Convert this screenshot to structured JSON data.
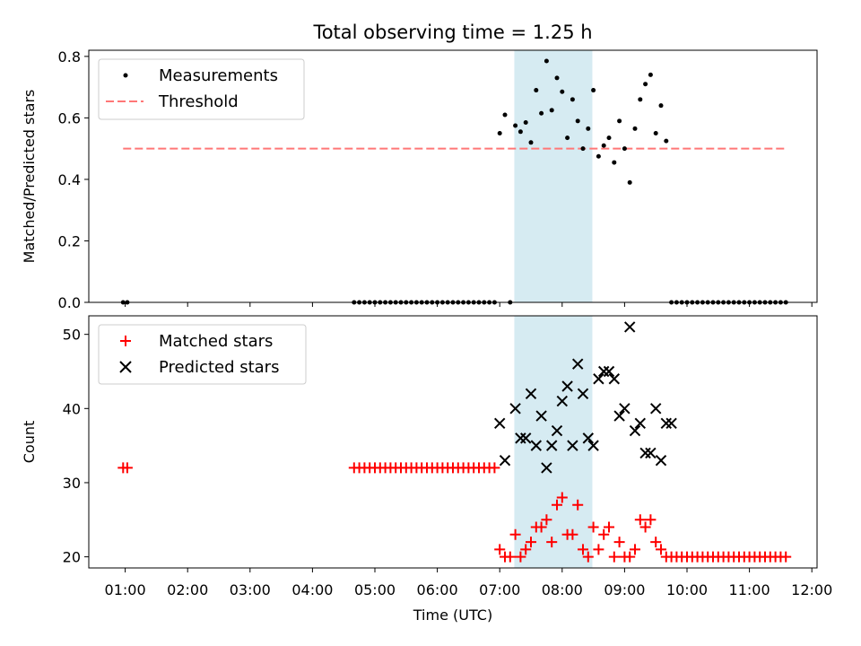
{
  "figure": {
    "title": "Total observing time = 1.25 h",
    "xlabel": "Time (UTC)",
    "xticks": [
      "01:00",
      "02:00",
      "03:00",
      "04:00",
      "05:00",
      "06:00",
      "07:00",
      "08:00",
      "09:00",
      "10:00",
      "11:00",
      "12:00"
    ]
  },
  "chart_data": [
    {
      "type": "scatter",
      "ylabel": "Matched/Predicted stars",
      "ylim": [
        0,
        0.82
      ],
      "yticks": [
        "0.0",
        "0.2",
        "0.4",
        "0.6",
        "0.8"
      ],
      "xlim": [
        "00:25",
        "12:05"
      ],
      "grid": false,
      "legend_position": "top-left",
      "highlight_span": [
        "07:14",
        "08:29"
      ],
      "threshold": {
        "name": "Threshold",
        "value": 0.5,
        "x_range": [
          "00:58",
          "11:35"
        ],
        "color": "#ff7777"
      },
      "series": [
        {
          "name": "Measurements",
          "color": "#000000",
          "x": [
            "00:58",
            "01:02",
            "04:40",
            "04:45",
            "04:50",
            "04:55",
            "05:00",
            "05:05",
            "05:10",
            "05:15",
            "05:20",
            "05:25",
            "05:30",
            "05:35",
            "05:40",
            "05:45",
            "05:50",
            "05:55",
            "06:00",
            "06:05",
            "06:10",
            "06:15",
            "06:20",
            "06:25",
            "06:30",
            "06:35",
            "06:40",
            "06:45",
            "06:50",
            "06:55",
            "07:00",
            "07:05",
            "07:10",
            "07:15",
            "07:20",
            "07:25",
            "07:30",
            "07:35",
            "07:40",
            "07:45",
            "07:50",
            "07:55",
            "08:00",
            "08:05",
            "08:10",
            "08:15",
            "08:20",
            "08:25",
            "08:30",
            "08:35",
            "08:40",
            "08:45",
            "08:50",
            "08:55",
            "09:00",
            "09:05",
            "09:10",
            "09:15",
            "09:20",
            "09:25",
            "09:30",
            "09:35",
            "09:40",
            "09:45",
            "09:50",
            "09:55",
            "10:00",
            "10:05",
            "10:10",
            "10:15",
            "10:20",
            "10:25",
            "10:30",
            "10:35",
            "10:40",
            "10:45",
            "10:50",
            "10:55",
            "11:00",
            "11:05",
            "11:10",
            "11:15",
            "11:20",
            "11:25",
            "11:30",
            "11:35"
          ],
          "y": [
            0,
            0,
            0,
            0,
            0,
            0,
            0,
            0,
            0,
            0,
            0,
            0,
            0,
            0,
            0,
            0,
            0,
            0,
            0,
            0,
            0,
            0,
            0,
            0,
            0,
            0,
            0,
            0,
            0,
            0,
            0.55,
            0.61,
            0.0,
            0.575,
            0.555,
            0.585,
            0.52,
            0.69,
            0.615,
            0.785,
            0.625,
            0.73,
            0.685,
            0.535,
            0.66,
            0.59,
            0.5,
            0.565,
            0.69,
            0.475,
            0.51,
            0.535,
            0.455,
            0.59,
            0.5,
            0.39,
            0.565,
            0.66,
            0.71,
            0.74,
            0.55,
            0.64,
            0.525,
            0,
            0,
            0,
            0,
            0,
            0,
            0,
            0,
            0,
            0,
            0,
            0,
            0,
            0,
            0,
            0,
            0,
            0,
            0,
            0,
            0,
            0,
            0
          ]
        }
      ]
    },
    {
      "type": "scatter",
      "ylabel": "Count",
      "ylim": [
        18.5,
        52.5
      ],
      "yticks": [
        "20",
        "30",
        "40",
        "50"
      ],
      "xlim": [
        "00:25",
        "12:05"
      ],
      "grid": false,
      "legend_position": "top-left",
      "highlight_span": [
        "07:14",
        "08:29"
      ],
      "series": [
        {
          "name": "Matched stars",
          "marker": "+",
          "color": "#ff0000",
          "x": [
            "00:58",
            "01:02",
            "04:40",
            "04:45",
            "04:50",
            "04:55",
            "05:00",
            "05:05",
            "05:10",
            "05:15",
            "05:20",
            "05:25",
            "05:30",
            "05:35",
            "05:40",
            "05:45",
            "05:50",
            "05:55",
            "06:00",
            "06:05",
            "06:10",
            "06:15",
            "06:20",
            "06:25",
            "06:30",
            "06:35",
            "06:40",
            "06:45",
            "06:50",
            "06:55",
            "07:00",
            "07:05",
            "07:10",
            "07:15",
            "07:20",
            "07:25",
            "07:30",
            "07:35",
            "07:40",
            "07:45",
            "07:50",
            "07:55",
            "08:00",
            "08:05",
            "08:10",
            "08:15",
            "08:20",
            "08:25",
            "08:30",
            "08:35",
            "08:40",
            "08:45",
            "08:50",
            "08:55",
            "09:00",
            "09:05",
            "09:10",
            "09:15",
            "09:20",
            "09:25",
            "09:30",
            "09:35",
            "09:40",
            "09:45",
            "09:50",
            "09:55",
            "10:00",
            "10:05",
            "10:10",
            "10:15",
            "10:20",
            "10:25",
            "10:30",
            "10:35",
            "10:40",
            "10:45",
            "10:50",
            "10:55",
            "11:00",
            "11:05",
            "11:10",
            "11:15",
            "11:20",
            "11:25",
            "11:30",
            "11:35"
          ],
          "y": [
            32,
            32,
            32,
            32,
            32,
            32,
            32,
            32,
            32,
            32,
            32,
            32,
            32,
            32,
            32,
            32,
            32,
            32,
            32,
            32,
            32,
            32,
            32,
            32,
            32,
            32,
            32,
            32,
            32,
            32,
            21,
            20,
            20,
            23,
            20,
            21,
            22,
            24,
            24,
            25,
            22,
            27,
            28,
            23,
            23,
            27,
            21,
            20,
            24,
            21,
            23,
            24,
            20,
            22,
            20,
            20,
            21,
            25,
            24,
            25,
            22,
            21,
            20,
            20,
            20,
            20,
            20,
            20,
            20,
            20,
            20,
            20,
            20,
            20,
            20,
            20,
            20,
            20,
            20,
            20,
            20,
            20,
            20,
            20,
            20,
            20
          ]
        },
        {
          "name": "Predicted stars",
          "marker": "x",
          "color": "#000000",
          "x": [
            "07:00",
            "07:05",
            "07:15",
            "07:20",
            "07:25",
            "07:30",
            "07:35",
            "07:40",
            "07:45",
            "07:50",
            "07:55",
            "08:00",
            "08:05",
            "08:10",
            "08:15",
            "08:20",
            "08:25",
            "08:30",
            "08:35",
            "08:40",
            "08:45",
            "08:50",
            "08:55",
            "09:00",
            "09:05",
            "09:10",
            "09:15",
            "09:20",
            "09:25",
            "09:30",
            "09:35",
            "09:40",
            "09:45"
          ],
          "y": [
            38,
            33,
            40,
            36,
            36,
            42,
            35,
            39,
            32,
            35,
            37,
            41,
            43,
            35,
            46,
            42,
            36,
            35,
            44,
            45,
            45,
            44,
            39,
            40,
            51,
            37,
            38,
            34,
            34,
            40,
            33,
            38,
            38
          ]
        }
      ]
    }
  ]
}
